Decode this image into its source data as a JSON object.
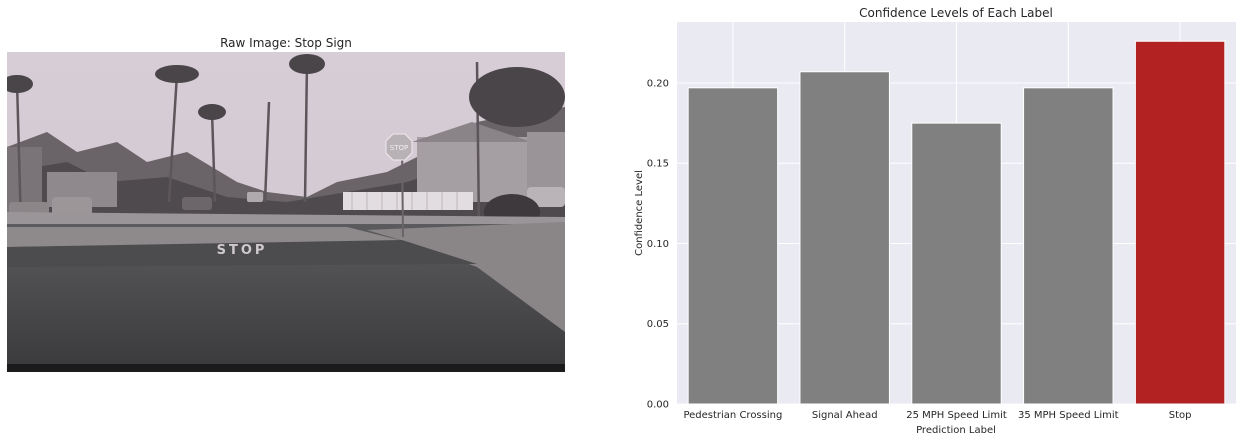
{
  "left_panel": {
    "title": "Raw Image: Stop Sign",
    "road_text": "STOP",
    "sign_text": "STOP"
  },
  "chart_data": {
    "type": "bar",
    "title": "Confidence Levels of Each Label",
    "xlabel": "Prediction Label",
    "ylabel": "Confidence Level",
    "categories": [
      "Pedestrian Crossing",
      "Signal Ahead",
      "25 MPH Speed Limit",
      "35 MPH Speed Limit",
      "Stop"
    ],
    "values": [
      0.197,
      0.207,
      0.175,
      0.197,
      0.226
    ],
    "highlight_index": 4,
    "ylim": [
      0,
      0.238
    ],
    "yticks": [
      0.0,
      0.05,
      0.1,
      0.15,
      0.2
    ],
    "ytick_labels": [
      "0.00",
      "0.05",
      "0.10",
      "0.15",
      "0.20"
    ],
    "grid": true,
    "colors": {
      "bar": "#808080",
      "highlight": "#b22222",
      "background": "#eaeaf2",
      "grid": "#ffffff"
    }
  }
}
